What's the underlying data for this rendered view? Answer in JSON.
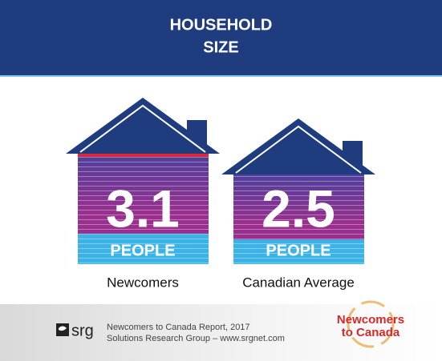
{
  "header": {
    "title_lines": [
      "HOUSEHOLD",
      "SIZE"
    ]
  },
  "houses": [
    {
      "value": 3.1,
      "unit": "PEOPLE",
      "label": "Newcomers"
    },
    {
      "value": 2.5,
      "unit": "PEOPLE",
      "label": "Canadian Average"
    }
  ],
  "footer": {
    "logo": "srg",
    "lines": [
      "Newcomers to Canada Report, 2017",
      "Solutions Research Group – www.srgnet.com"
    ],
    "badge_lines": [
      "Newcomers",
      "to Canada"
    ]
  }
}
